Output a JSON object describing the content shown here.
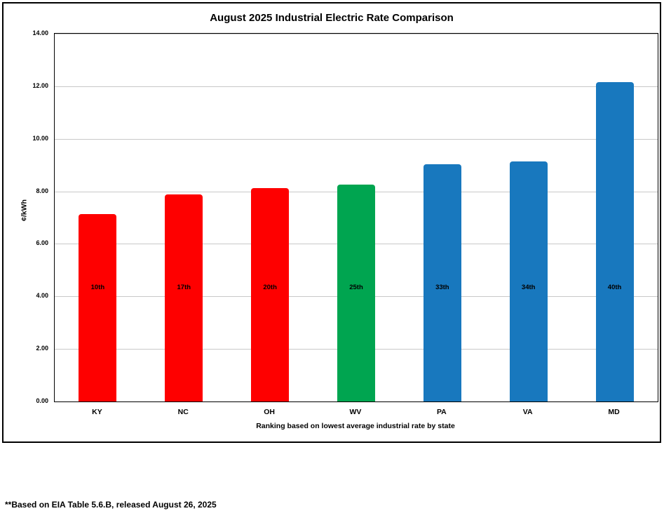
{
  "chart_data": {
    "type": "bar",
    "title": "August 2025 Industrial Electric Rate Comparison",
    "xlabel": "Ranking based on lowest average industrial rate by state",
    "ylabel": "¢/kWh",
    "ylim": [
      0,
      14
    ],
    "ytick_step": 2,
    "ytick_decimals": 2,
    "grid": true,
    "legend": false,
    "categories": [
      "KY",
      "NC",
      "OH",
      "WV",
      "PA",
      "VA",
      "MD"
    ],
    "values": [
      7.14,
      7.88,
      8.12,
      8.25,
      9.02,
      9.13,
      12.15
    ],
    "bar_labels": [
      "10th",
      "17th",
      "20th",
      "25th",
      "33th",
      "34th",
      "40th"
    ],
    "bar_colors": [
      "#fe0000",
      "#fe0000",
      "#fe0000",
      "#00a550",
      "#1878be",
      "#1878be",
      "#1878be"
    ]
  },
  "footnote": "**Based on EIA Table 5.6.B, released August 26, 2025"
}
